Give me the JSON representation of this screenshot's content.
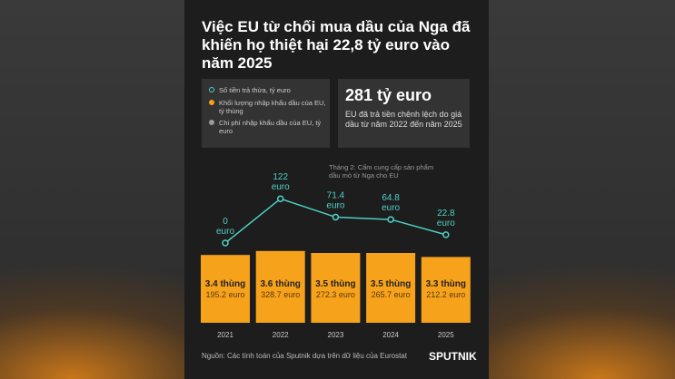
{
  "chart_data": {
    "type": "bar",
    "title": "Việc EU từ chối mua dầu của Nga đã khiến họ thiệt hại 22,8 tỷ euro vào năm 2025",
    "categories": [
      "2021",
      "2022",
      "2023",
      "2024",
      "2025"
    ],
    "series": [
      {
        "name": "Số tiền trả thừa, tỷ euro",
        "type": "line",
        "color": "#4fd1c5",
        "values": [
          0,
          122,
          71.4,
          64.8,
          22.8
        ],
        "unit": "euro"
      },
      {
        "name": "Khối lượng nhập khẩu dầu của EU, tỷ thùng",
        "color": "#f7a21b",
        "values": [
          3.4,
          3.6,
          3.5,
          3.5,
          3.3
        ],
        "value_labels": [
          "3.4 thùng",
          "3.6 thùng",
          "3.5 thùng",
          "3.5 thùng",
          "3.3 thùng"
        ]
      },
      {
        "name": "Chi phí nhập khẩu dầu của EU, tỷ euro",
        "color": "#9a9a9a",
        "values": [
          195.2,
          328.7,
          272.3,
          265.7,
          212.2
        ],
        "value_labels": [
          "195.2 euro",
          "328.7 euro",
          "272.3 euro",
          "265.7 euro",
          "212.2 euro"
        ]
      }
    ],
    "highlight": {
      "value": "281 tỷ euro",
      "text": "EU đã trả tiền chênh lệch do giá dầu từ năm 2022 đến năm 2025"
    },
    "annotation": "Tháng 2: Cấm cung cấp sản phẩm dầu mỏ từ Nga cho EU",
    "source": "Nguồn: Các tính toán của Sputnik dựa trên dữ liệu của Eurostat",
    "logo": "SPUTNIK"
  }
}
